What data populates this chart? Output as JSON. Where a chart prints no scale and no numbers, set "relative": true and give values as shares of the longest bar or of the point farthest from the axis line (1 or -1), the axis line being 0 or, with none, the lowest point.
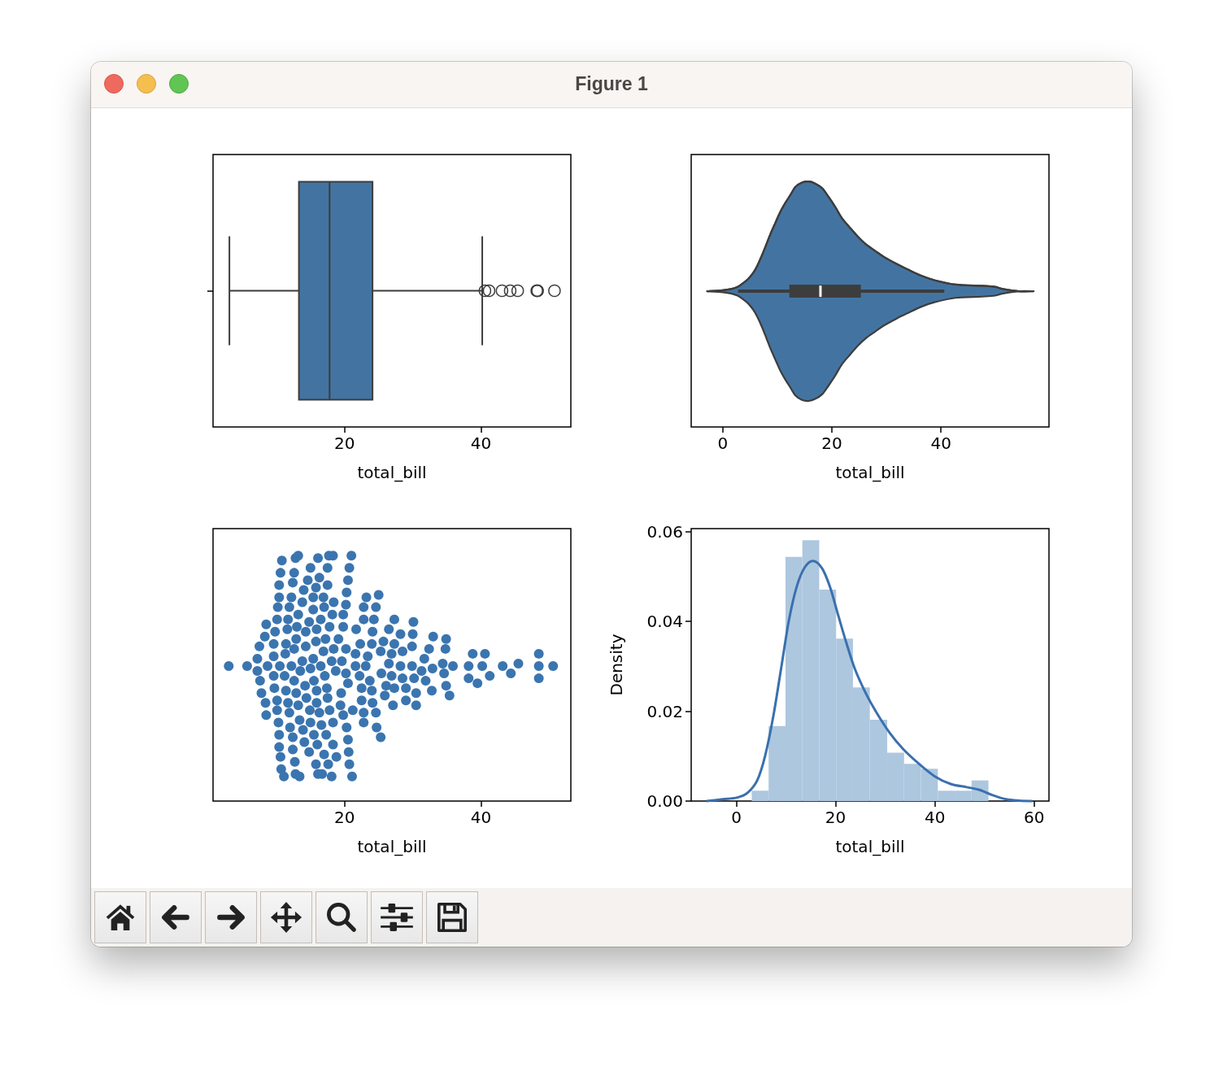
{
  "chart_data": [
    {
      "type": "box",
      "orientation": "horizontal",
      "annotations": [
        "Figure 1"
      ],
      "categories": [
        null
      ],
      "color": "#4374a1",
      "boxes": [
        {
          "low": 3.1,
          "q1": 13.3,
          "median": 17.8,
          "q3": 24.1,
          "high": 40.2,
          "outliers": [
            40.6,
            41.2,
            43.1,
            44.3,
            45.4,
            48.2,
            48.3,
            48.3,
            50.8
          ]
        }
      ],
      "xlim": [
        0.7,
        53.2
      ],
      "xticks": [
        20,
        40
      ],
      "xlabel": "total_bill"
    },
    {
      "type": "line",
      "relative": true,
      "color": "#4374a1",
      "x": [
        -2.9,
        0.0,
        1.5,
        2.7,
        3.6,
        4.6,
        5.6,
        6.3,
        7.2,
        8.0,
        8.7,
        9.7,
        10.5,
        11.4,
        12.4,
        13.3,
        14.5,
        15.8,
        17.0,
        18.2,
        19.4,
        20.6,
        21.8,
        23.3,
        24.7,
        26.2,
        27.9,
        29.6,
        31.8,
        33.9,
        36.4,
        38.8,
        42.7,
        47.5,
        49.9,
        51.4,
        54.3,
        57.0
      ],
      "series": [
        {
          "color": "#3d3d3d",
          "values": [
            0.553,
            0.557,
            0.562,
            0.571,
            0.584,
            0.602,
            0.629,
            0.656,
            0.701,
            0.745,
            0.785,
            0.835,
            0.875,
            0.911,
            0.946,
            0.978,
            0.996,
            1.0,
            0.991,
            0.973,
            0.937,
            0.897,
            0.852,
            0.812,
            0.777,
            0.745,
            0.718,
            0.692,
            0.665,
            0.642,
            0.616,
            0.598,
            0.58,
            0.575,
            0.571,
            0.562,
            0.553,
            0.553
          ],
          "lower": [
            0.553,
            0.549,
            0.544,
            0.535,
            0.522,
            0.504,
            0.477,
            0.45,
            0.406,
            0.361,
            0.321,
            0.271,
            0.231,
            0.195,
            0.16,
            0.128,
            0.11,
            0.106,
            0.115,
            0.133,
            0.169,
            0.209,
            0.254,
            0.294,
            0.33,
            0.361,
            0.388,
            0.414,
            0.441,
            0.464,
            0.49,
            0.508,
            0.526,
            0.531,
            0.535,
            0.544,
            0.553,
            0.553
          ],
          "upper": [
            0.553,
            0.557,
            0.562,
            0.571,
            0.584,
            0.602,
            0.629,
            0.656,
            0.701,
            0.745,
            0.785,
            0.835,
            0.875,
            0.911,
            0.946,
            0.978,
            0.996,
            1.0,
            0.991,
            0.973,
            0.937,
            0.897,
            0.852,
            0.812,
            0.777,
            0.745,
            0.718,
            0.692,
            0.665,
            0.642,
            0.616,
            0.598,
            0.58,
            0.575,
            0.571,
            0.562,
            0.553,
            0.553
          ]
        },
        {
          "color": "#3d3d3d",
          "x": [
            2.8,
            40.6
          ],
          "values": [
            0.553,
            0.553
          ]
        },
        {
          "color": "#3d3d3d",
          "x": [
            12.2,
            25.3
          ],
          "values": [
            0.553,
            0.553
          ]
        },
        {
          "color": "#ffffff",
          "x": [
            17.9,
            17.9
          ],
          "values": [
            0.53,
            0.576
          ]
        }
      ],
      "xlim": [
        -5.8,
        59.8
      ],
      "xticks": [
        0,
        20,
        40
      ],
      "xlabel": "total_bill"
    },
    {
      "type": "scatter",
      "relative": true,
      "marker": "circle",
      "color": "#3b75af",
      "x": [
        3.0,
        5.7,
        8.5,
        8.3,
        7.5,
        7.2,
        8.7,
        7.2,
        7.6,
        7.8,
        8.4,
        8.5,
        10.8,
        10.6,
        10.4,
        10.4,
        10.2,
        10.1,
        9.8,
        9.6,
        9.6,
        10.5,
        9.6,
        9.7,
        10.1,
        10.1,
        10.3,
        10.4,
        10.4,
        10.6,
        10.7,
        11.1,
        12.8,
        13.2,
        12.6,
        12.4,
        12.2,
        11.9,
        11.7,
        11.6,
        11.4,
        11.3,
        12.2,
        11.2,
        11.4,
        11.7,
        11.9,
        12.0,
        12.4,
        12.4,
        12.7,
        12.8,
        13.4,
        14.0,
        13.8,
        13.2,
        13.0,
        12.9,
        12.6,
        13.8,
        13.5,
        12.6,
        12.9,
        13.2,
        13.4,
        13.9,
        14.1,
        14.8,
        15.0,
        14.6,
        15.8,
        15.4,
        15.4,
        14.8,
        14.3,
        14.3,
        15.4,
        15.0,
        15.5,
        14.2,
        14.4,
        14.9,
        15.0,
        15.5,
        16.0,
        15.8,
        16.1,
        16.1,
        16.3,
        16.9,
        17.0,
        16.5,
        15.9,
        15.8,
        16.9,
        16.5,
        17.1,
        15.9,
        15.9,
        16.3,
        16.6,
        17.3,
        17.0,
        17.6,
        16.7,
        17.5,
        17.5,
        18.4,
        18.2,
        17.8,
        17.2,
        18.4,
        18.1,
        18.7,
        17.4,
        17.5,
        17.8,
        18.3,
        18.3,
        18.8,
        18.1,
        17.7,
        18.3,
        21.0,
        20.7,
        20.5,
        20.3,
        20.2,
        19.8,
        19.8,
        19.1,
        20.2,
        19.6,
        20.2,
        20.5,
        19.5,
        19.4,
        19.8,
        20.3,
        20.5,
        20.6,
        20.7,
        21.1,
        21.7,
        22.3,
        21.6,
        21.6,
        22.2,
        22.5,
        22.5,
        21.2,
        22.8,
        22.8,
        23.2,
        25.0,
        22.8,
        24.6,
        22.8,
        24.3,
        24.1,
        24.0,
        23.4,
        23.1,
        23.7,
        24.0,
        24.1,
        24.6,
        24.7,
        25.3,
        25.4,
        25.7,
        25.3,
        25.9,
        26.1,
        27.3,
        30.1,
        26.5,
        28.2,
        30.0,
        27.3,
        33.0,
        34.9,
        29.9,
        32.4,
        34.8,
        26.9,
        28.5,
        31.7,
        38.8,
        40.6,
        48.5,
        26.5,
        28.2,
        29.9,
        31.3,
        32.9,
        34.4,
        35.9,
        38.2,
        40.2,
        43.2,
        45.5,
        48.5,
        50.6,
        26.9,
        28.5,
        30.2,
        31.9,
        34.6,
        38.2,
        41.3,
        44.4,
        48.5,
        39.5,
        27.3,
        29.0,
        30.5,
        32.8,
        34.9,
        29.0,
        27.1,
        30.5,
        35.4
      ],
      "values": [
        0.55,
        0.55,
        0.72,
        0.67,
        0.63,
        0.58,
        0.55,
        0.53,
        0.49,
        0.44,
        0.4,
        0.35,
        0.98,
        0.93,
        0.88,
        0.83,
        0.79,
        0.74,
        0.69,
        0.64,
        0.59,
        0.55,
        0.51,
        0.46,
        0.41,
        0.37,
        0.32,
        0.27,
        0.22,
        0.18,
        0.13,
        0.1,
        0.99,
        1,
        0.93,
        0.89,
        0.83,
        0.79,
        0.74,
        0.7,
        0.64,
        0.6,
        0.55,
        0.51,
        0.45,
        0.4,
        0.36,
        0.3,
        0.26,
        0.21,
        0.16,
        0.11,
        0.1,
        0.86,
        0.81,
        0.76,
        0.71,
        0.66,
        0.62,
        0.57,
        0.53,
        0.49,
        0.44,
        0.39,
        0.33,
        0.29,
        0.24,
        0.2,
        0.95,
        0.9,
        0.87,
        0.83,
        0.78,
        0.73,
        0.69,
        0.63,
        0.58,
        0.54,
        0.49,
        0.47,
        0.42,
        0.37,
        0.32,
        0.27,
        0.23,
        0.15,
        0.11,
        0.99,
        0.91,
        0.83,
        0.79,
        0.74,
        0.7,
        0.65,
        0.61,
        0.55,
        0.51,
        0.45,
        0.4,
        0.36,
        0.31,
        0.27,
        0.19,
        0.15,
        0.11,
        0.95,
        0.88,
        0.81,
        0.76,
        0.71,
        0.66,
        0.62,
        0.57,
        0.53,
        0.46,
        0.42,
        0.37,
        0.32,
        0.23,
        0.18,
        0.1,
        1,
        1,
        1,
        0.95,
        0.9,
        0.85,
        0.8,
        0.76,
        0.71,
        0.66,
        0.62,
        0.57,
        0.52,
        0.48,
        0.44,
        0.39,
        0.35,
        0.3,
        0.25,
        0.2,
        0.15,
        0.1,
        0.7,
        0.64,
        0.6,
        0.55,
        0.51,
        0.46,
        0.41,
        0.37,
        0.36,
        0.32,
        0.83,
        0.84,
        0.79,
        0.79,
        0.74,
        0.74,
        0.69,
        0.64,
        0.59,
        0.55,
        0.49,
        0.45,
        0.4,
        0.36,
        0.3,
        0.26,
        0.52,
        0.65,
        0.61,
        0.43,
        0.47,
        0.74,
        0.73,
        0.7,
        0.68,
        0.68,
        0.64,
        0.67,
        0.66,
        0.63,
        0.62,
        0.62,
        0.6,
        0.61,
        0.58,
        0.6,
        0.6,
        0.6,
        0.56,
        0.55,
        0.55,
        0.53,
        0.54,
        0.56,
        0.55,
        0.55,
        0.55,
        0.55,
        0.56,
        0.55,
        0.55,
        0.51,
        0.5,
        0.5,
        0.49,
        0.52,
        0.5,
        0.51,
        0.52,
        0.5,
        0.48,
        0.46,
        0.46,
        0.44,
        0.45,
        0.47,
        0.41,
        0.39,
        0.39,
        0.43
      ],
      "xlim": [
        0.7,
        53.2
      ],
      "xticks": [
        20,
        40
      ],
      "xlabel": "total_bill"
    },
    {
      "type": "histogram",
      "series": [
        {
          "type": "histogram",
          "color": "#adc7df",
          "bins": [
            3.1,
            6.5,
            9.9,
            13.3,
            16.7,
            20.1,
            23.5,
            26.9,
            30.4,
            33.8,
            37.2,
            40.6,
            44.0,
            47.4,
            50.8
          ],
          "values": [
            0.0023,
            0.0167,
            0.0544,
            0.0581,
            0.0471,
            0.0362,
            0.0253,
            0.0181,
            0.0108,
            0.0083,
            0.0072,
            0.0023,
            0.0023,
            0.0046
          ]
        },
        {
          "type": "line",
          "color": "#3a70ae",
          "x": [
            -6.0,
            -2.8,
            0.2,
            2.3,
            4.2,
            5.8,
            7.4,
            9.0,
            10.6,
            12.2,
            13.8,
            15.5,
            17.3,
            18.9,
            20.5,
            22.1,
            23.9,
            26.1,
            28.2,
            30.9,
            33.6,
            36.8,
            40.0,
            43.2,
            46.4,
            49.0,
            51.7,
            54.4,
            57.1,
            59.6
          ],
          "values": [
            0,
            0.0004,
            0.0008,
            0.0019,
            0.0046,
            0.0101,
            0.0186,
            0.0294,
            0.0403,
            0.0479,
            0.0521,
            0.0535,
            0.0518,
            0.0476,
            0.0415,
            0.0355,
            0.0294,
            0.024,
            0.0198,
            0.0152,
            0.0116,
            0.0083,
            0.0055,
            0.0038,
            0.0031,
            0.0025,
            0.0013,
            0.0004,
            0.0001,
            0
          ]
        }
      ],
      "xlim": [
        -9.1,
        63.0
      ],
      "xticks": [
        0,
        20,
        40,
        60
      ],
      "ylim": [
        0,
        0.0607
      ],
      "yticks": [
        {
          "value": 0,
          "label": "0.00"
        },
        0.02,
        0.04,
        0.06
      ],
      "xlabel": "total_bill",
      "ylabel": "Density"
    }
  ]
}
